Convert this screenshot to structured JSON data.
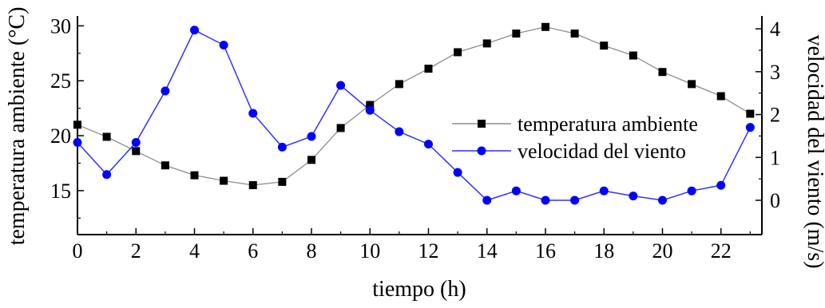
{
  "chart_data": {
    "type": "line",
    "x": [
      0,
      1,
      2,
      3,
      4,
      5,
      6,
      7,
      8,
      9,
      10,
      11,
      12,
      13,
      14,
      15,
      16,
      17,
      18,
      19,
      20,
      21,
      22,
      23
    ],
    "xlabel": "tiempo (h)",
    "ylabel_left": "temperatura ambiente (°C)",
    "ylabel_right": "velocidad del viento (m/s)",
    "xlim": [
      0,
      23.4
    ],
    "ylim_left": [
      11,
      30.9
    ],
    "ylim_right": [
      -0.8,
      4.3
    ],
    "xticks": [
      0,
      2,
      4,
      6,
      8,
      10,
      12,
      14,
      16,
      18,
      20,
      22
    ],
    "yticks_left": [
      15,
      20,
      25,
      30
    ],
    "yticks_right": [
      0,
      1,
      2,
      3,
      4
    ],
    "grid": false,
    "legend_position": "right-middle",
    "series": [
      {
        "name": "temperatura ambiente",
        "axis": "left",
        "marker": "square",
        "color": "#000000",
        "line_color": "#8c8c8c",
        "values": [
          21.0,
          19.9,
          18.6,
          17.3,
          16.4,
          15.9,
          15.5,
          15.8,
          17.8,
          20.7,
          22.8,
          24.7,
          26.1,
          27.6,
          28.4,
          29.3,
          29.9,
          29.3,
          28.2,
          27.3,
          25.8,
          24.7,
          23.6,
          22.0
        ]
      },
      {
        "name": "velocidad del viento",
        "axis": "right",
        "marker": "circle",
        "color": "#0000ff",
        "line_color": "#3030ff",
        "values": [
          1.35,
          0.6,
          1.35,
          2.55,
          3.97,
          3.62,
          2.03,
          1.24,
          1.49,
          2.68,
          2.1,
          1.6,
          1.31,
          0.65,
          0.0,
          0.22,
          0.0,
          0.0,
          0.22,
          0.1,
          0.0,
          0.22,
          0.35,
          1.7
        ]
      }
    ]
  }
}
